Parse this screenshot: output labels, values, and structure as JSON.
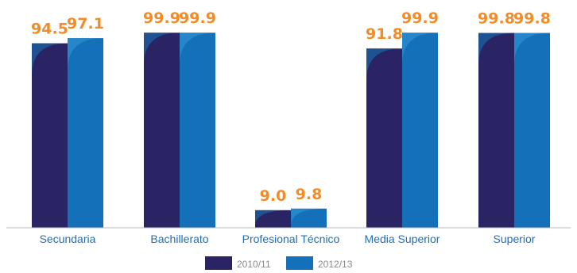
{
  "chart_data": {
    "type": "bar",
    "categories": [
      "Secundaria",
      "Bachillerato",
      "Profesional Técnico",
      "Media Superior",
      "Superior"
    ],
    "series": [
      {
        "name": "2010/11",
        "values": [
          94.5,
          99.9,
          9.0,
          91.8,
          99.8
        ],
        "labels": [
          "94.5",
          "99.9",
          "9.0",
          "91.8",
          "99.8"
        ]
      },
      {
        "name": "2012/13",
        "values": [
          97.1,
          99.9,
          9.8,
          99.9,
          99.8
        ],
        "labels": [
          "97.1",
          "99.9",
          "9.8",
          "99.9",
          "99.8"
        ]
      }
    ],
    "ylim": [
      0,
      100
    ],
    "grid": false,
    "legend_position": "bottom-center",
    "title": "",
    "xlabel": "",
    "ylabel": ""
  },
  "colors": {
    "series_2010": "#2a2464",
    "series_2010_shade": "#1d5a98",
    "series_2012": "#1470b8",
    "series_2012_shade": "#2889cc",
    "label": "#f28c28",
    "category_text": "#1f6fb6",
    "legend_text": "#8a8a8a",
    "axis": "#b8b8b8"
  }
}
